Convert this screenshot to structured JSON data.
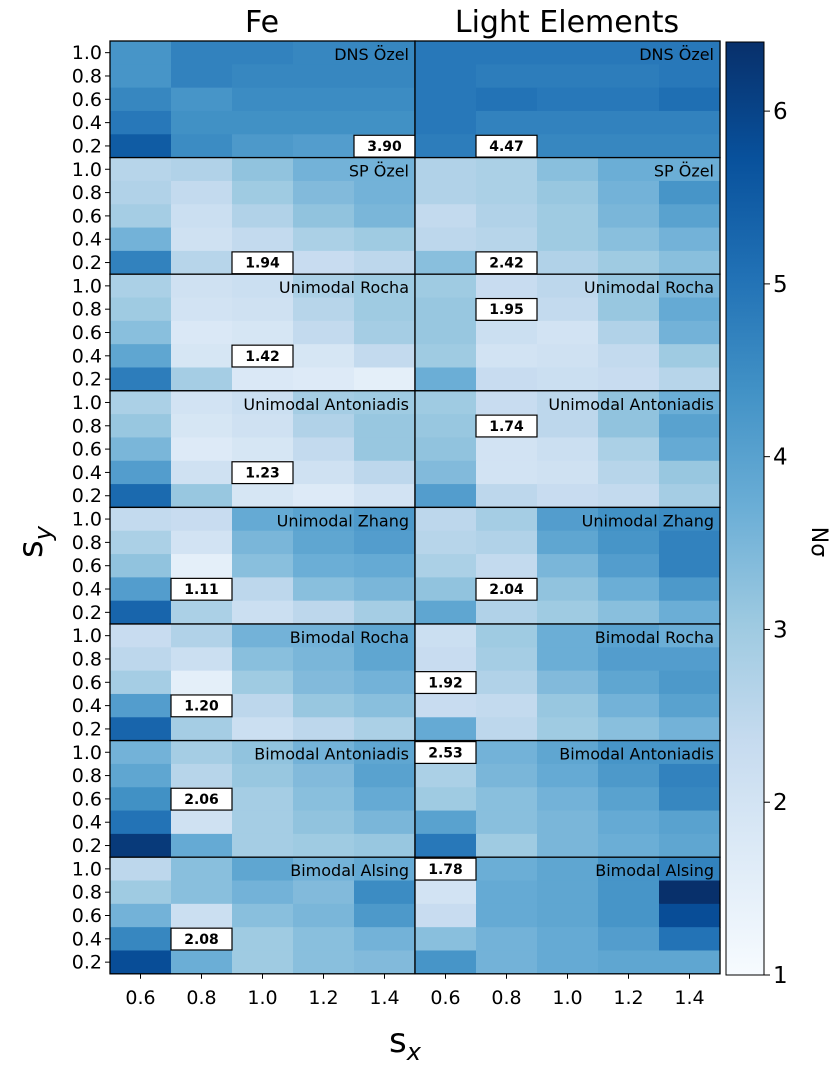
{
  "chart_data": {
    "type": "heatmap",
    "column_titles": [
      "Fe",
      "Light Elements"
    ],
    "xlabel_main": "s",
    "xlabel_sub": "x",
    "ylabel_main": "s",
    "ylabel_sub": "y",
    "x_ticks": [
      "0.6",
      "0.8",
      "1.0",
      "1.2",
      "1.4"
    ],
    "y_ticks": [
      "1.0",
      "0.8",
      "0.6",
      "0.4",
      "0.2"
    ],
    "colorbar": {
      "label": "Nσ",
      "min": 1,
      "max": 6.4,
      "ticks": [
        "1",
        "2",
        "3",
        "4",
        "5",
        "6"
      ],
      "colors": [
        "#f7fbff",
        "#deebf7",
        "#c6dbef",
        "#9ecae1",
        "#6baed6",
        "#4292c6",
        "#2171b5",
        "#08519c",
        "#08306b"
      ]
    },
    "panels": [
      {
        "model": "DNS Özel",
        "column": "Fe",
        "min_label": "3.90",
        "min_sx_index": 4,
        "min_sy_index": 4,
        "values": [
          [
            4.3,
            4.7,
            4.7,
            4.6,
            4.6
          ],
          [
            4.3,
            4.7,
            4.6,
            4.6,
            4.6
          ],
          [
            4.6,
            4.3,
            4.5,
            4.5,
            4.5
          ],
          [
            4.9,
            4.4,
            4.4,
            4.4,
            4.4
          ],
          [
            5.5,
            4.5,
            4.2,
            4.1,
            3.9
          ]
        ]
      },
      {
        "model": "DNS Özel",
        "column": "Light Elements",
        "min_label": "4.47",
        "min_sx_index": 1,
        "min_sy_index": 4,
        "values": [
          [
            4.9,
            4.9,
            4.9,
            4.9,
            4.9
          ],
          [
            4.9,
            4.8,
            4.8,
            4.8,
            4.9
          ],
          [
            4.9,
            5.0,
            4.9,
            4.9,
            5.1
          ],
          [
            4.9,
            4.7,
            4.7,
            4.7,
            4.7
          ],
          [
            4.8,
            4.5,
            4.6,
            4.6,
            4.6
          ]
        ]
      },
      {
        "model": "SP Özel",
        "column": "Fe",
        "min_label": "1.94",
        "min_sx_index": 2,
        "min_sy_index": 4,
        "values": [
          [
            2.6,
            2.7,
            3.2,
            3.6,
            3.6
          ],
          [
            2.7,
            2.4,
            3.0,
            3.4,
            3.6
          ],
          [
            2.9,
            2.2,
            2.7,
            3.2,
            3.5
          ],
          [
            3.6,
            2.1,
            2.4,
            2.8,
            3.0
          ],
          [
            4.7,
            2.6,
            1.94,
            2.3,
            2.5
          ]
        ]
      },
      {
        "model": "SP Özel",
        "column": "Light Elements",
        "min_label": "2.42",
        "min_sx_index": 1,
        "min_sy_index": 4,
        "values": [
          [
            2.7,
            2.8,
            3.3,
            3.7,
            3.7
          ],
          [
            2.7,
            2.8,
            3.1,
            3.6,
            4.3
          ],
          [
            2.4,
            2.7,
            3.0,
            3.5,
            4.0
          ],
          [
            2.5,
            2.6,
            3.0,
            3.3,
            3.6
          ],
          [
            3.3,
            2.42,
            2.7,
            3.0,
            3.3
          ]
        ]
      },
      {
        "model": "Unimodal Rocha",
        "column": "Fe",
        "min_label": "1.42",
        "min_sx_index": 2,
        "min_sy_index": 3,
        "values": [
          [
            2.8,
            2.1,
            2.2,
            2.8,
            3.0
          ],
          [
            3.0,
            2.0,
            2.1,
            2.6,
            3.0
          ],
          [
            3.3,
            1.8,
            1.9,
            2.4,
            2.9
          ],
          [
            3.9,
            1.9,
            1.42,
            1.9,
            2.4
          ],
          [
            4.8,
            2.9,
            1.8,
            1.7,
            1.5
          ]
        ]
      },
      {
        "model": "Unimodal Rocha",
        "column": "Light Elements",
        "min_label": "1.95",
        "min_sx_index": 1,
        "min_sy_index": 1,
        "values": [
          [
            3.0,
            2.3,
            2.5,
            3.1,
            3.5
          ],
          [
            3.1,
            1.95,
            2.4,
            3.1,
            3.8
          ],
          [
            3.1,
            2.2,
            2.0,
            2.7,
            3.6
          ],
          [
            3.0,
            2.0,
            2.1,
            2.4,
            3.0
          ],
          [
            3.7,
            2.3,
            2.2,
            2.3,
            2.6
          ]
        ]
      },
      {
        "model": "Unimodal Antoniadis",
        "column": "Fe",
        "min_label": "1.23",
        "min_sx_index": 2,
        "min_sy_index": 3,
        "values": [
          [
            2.8,
            2.0,
            2.2,
            2.9,
            3.0
          ],
          [
            3.1,
            1.9,
            2.1,
            2.7,
            3.1
          ],
          [
            3.5,
            1.7,
            1.9,
            2.4,
            3.1
          ],
          [
            4.1,
            2.1,
            1.23,
            2.1,
            2.5
          ],
          [
            5.2,
            3.1,
            1.9,
            1.7,
            2.0
          ]
        ]
      },
      {
        "model": "Unimodal Antoniadis",
        "column": "Light Elements",
        "min_label": "1.74",
        "min_sx_index": 1,
        "min_sy_index": 1,
        "values": [
          [
            3.0,
            2.3,
            2.5,
            3.2,
            3.7
          ],
          [
            3.1,
            1.74,
            2.5,
            3.2,
            4.0
          ],
          [
            3.2,
            2.0,
            2.2,
            2.8,
            3.8
          ],
          [
            3.4,
            2.0,
            2.1,
            2.6,
            3.1
          ],
          [
            4.1,
            2.5,
            2.3,
            2.4,
            2.9
          ]
        ]
      },
      {
        "model": "Unimodal Zhang",
        "column": "Fe",
        "min_label": "1.11",
        "min_sx_index": 1,
        "min_sy_index": 3,
        "values": [
          [
            2.4,
            2.3,
            3.8,
            4.0,
            4.2
          ],
          [
            2.8,
            2.0,
            3.5,
            3.9,
            4.1
          ],
          [
            3.2,
            1.5,
            3.3,
            3.7,
            3.8
          ],
          [
            4.1,
            1.11,
            2.5,
            3.3,
            3.5
          ],
          [
            5.3,
            2.8,
            2.2,
            2.5,
            2.9
          ]
        ]
      },
      {
        "model": "Unimodal Zhang",
        "column": "Light Elements",
        "min_label": "2.04",
        "min_sx_index": 1,
        "min_sy_index": 3,
        "values": [
          [
            2.5,
            2.9,
            4.1,
            4.4,
            4.5
          ],
          [
            2.6,
            2.7,
            3.9,
            4.3,
            4.7
          ],
          [
            2.8,
            2.4,
            3.5,
            4.1,
            4.7
          ],
          [
            3.2,
            2.04,
            3.2,
            3.7,
            4.2
          ],
          [
            3.9,
            2.7,
            3.0,
            3.3,
            3.7
          ]
        ]
      },
      {
        "model": "Bimodal Rocha",
        "column": "Fe",
        "min_label": "1.20",
        "min_sx_index": 1,
        "min_sy_index": 3,
        "values": [
          [
            2.3,
            2.7,
            3.6,
            3.6,
            3.9
          ],
          [
            2.5,
            2.2,
            3.3,
            3.5,
            3.9
          ],
          [
            2.9,
            1.5,
            3.0,
            3.4,
            3.6
          ],
          [
            4.1,
            1.2,
            2.5,
            3.1,
            3.3
          ],
          [
            5.3,
            2.9,
            2.2,
            2.5,
            2.8
          ]
        ]
      },
      {
        "model": "Bimodal Rocha",
        "column": "Light Elements",
        "min_label": "1.92",
        "min_sx_index": 0,
        "min_sy_index": 2,
        "values": [
          [
            2.2,
            3.0,
            3.7,
            4.0,
            3.7
          ],
          [
            2.3,
            2.9,
            3.7,
            4.1,
            4.1
          ],
          [
            1.92,
            2.7,
            3.4,
            3.9,
            4.2
          ],
          [
            2.3,
            2.4,
            3.1,
            3.6,
            4.0
          ],
          [
            3.8,
            2.5,
            3.0,
            3.3,
            3.6
          ]
        ]
      },
      {
        "model": "Bimodal Antoniadis",
        "column": "Fe",
        "min_label": "2.06",
        "min_sx_index": 1,
        "min_sy_index": 2,
        "values": [
          [
            3.6,
            2.9,
            3.2,
            3.6,
            3.9
          ],
          [
            3.9,
            2.6,
            3.1,
            3.4,
            4.0
          ],
          [
            4.4,
            2.06,
            2.9,
            3.3,
            3.8
          ],
          [
            5.0,
            2.1,
            2.9,
            3.2,
            3.5
          ],
          [
            6.2,
            3.8,
            2.9,
            3.0,
            3.1
          ]
        ]
      },
      {
        "model": "Bimodal Antoniadis",
        "column": "Light Elements",
        "min_label": "2.53",
        "min_sx_index": 0,
        "min_sy_index": 0,
        "values": [
          [
            2.53,
            3.6,
            3.9,
            4.3,
            4.3
          ],
          [
            2.8,
            3.5,
            3.8,
            4.2,
            4.7
          ],
          [
            3.0,
            3.3,
            3.6,
            4.0,
            4.6
          ],
          [
            4.0,
            3.3,
            3.5,
            3.8,
            4.0
          ],
          [
            4.9,
            3.0,
            3.5,
            3.7,
            3.9
          ]
        ]
      },
      {
        "model": "Bimodal Alsing",
        "column": "Fe",
        "min_label": "2.08",
        "min_sx_index": 1,
        "min_sy_index": 3,
        "values": [
          [
            2.5,
            3.3,
            3.9,
            3.6,
            3.8
          ],
          [
            3.0,
            3.3,
            3.6,
            3.4,
            4.5
          ],
          [
            3.6,
            2.2,
            3.3,
            3.5,
            4.2
          ],
          [
            4.6,
            2.08,
            3.0,
            3.3,
            3.6
          ],
          [
            5.8,
            3.7,
            3.0,
            3.3,
            3.4
          ]
        ]
      },
      {
        "model": "Bimodal Alsing",
        "column": "Light Elements",
        "min_label": "1.78",
        "min_sx_index": 0,
        "min_sy_index": 0,
        "values": [
          [
            1.78,
            3.7,
            3.9,
            4.3,
            4.7
          ],
          [
            2.0,
            3.8,
            3.9,
            4.3,
            6.4
          ],
          [
            2.3,
            3.8,
            3.9,
            4.3,
            5.8
          ],
          [
            3.3,
            3.6,
            3.8,
            4.1,
            5.0
          ],
          [
            4.3,
            3.6,
            3.8,
            3.9,
            3.9
          ]
        ]
      }
    ]
  }
}
